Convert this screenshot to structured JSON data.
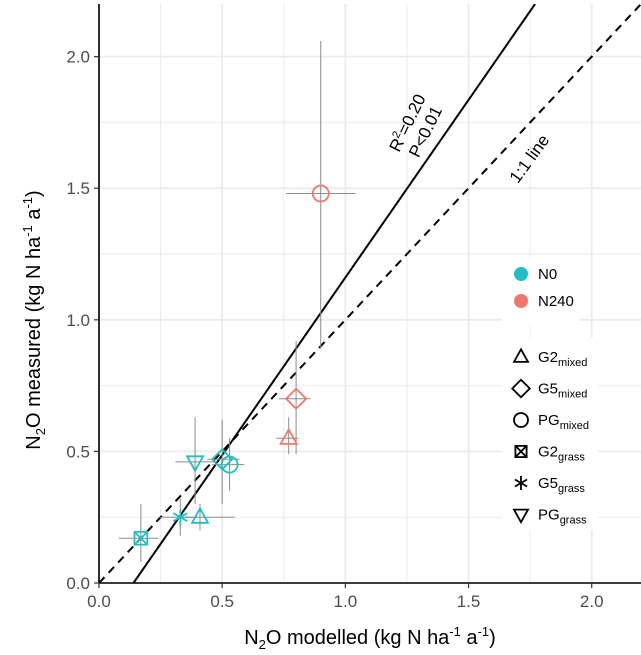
{
  "chart_data": {
    "type": "scatter",
    "xlabel": {
      "pre": "N",
      "sub": "2",
      "mid": "O modelled (kg N ha",
      "sup1": "-1",
      "mid2": " a",
      "sup2": "-1",
      "post": ")"
    },
    "ylabel": {
      "pre": "N",
      "sub": "2",
      "mid": "O measured (kg N ha",
      "sup1": "-1",
      "mid2": " a",
      "sup2": "-1",
      "post": ")"
    },
    "xlim": [
      0,
      2.2
    ],
    "ylim": [
      0,
      2.2
    ],
    "x_ticks": [
      "0.0",
      "0.5",
      "1.0",
      "1.5",
      "2.0"
    ],
    "y_ticks": [
      "0.0",
      "0.5",
      "1.0",
      "1.5",
      "2.0"
    ],
    "grid": true,
    "regression": {
      "r2_prefix": "R",
      "r2_sup": "2",
      "r2_value": "=0.20",
      "p_text": "P<0.01",
      "points": [
        [
          0.14,
          0
        ],
        [
          1.77,
          2.2
        ]
      ]
    },
    "identity_line": {
      "label": "1:1 line",
      "points": [
        [
          0,
          0
        ],
        [
          2.2,
          2.2
        ]
      ]
    },
    "colors": {
      "N0": "#1fbfc4",
      "N240": "#f0776b",
      "error": "#8c8c8c",
      "grid": "#ebebeb"
    },
    "color_legend": [
      {
        "key": "N0",
        "label": "N0"
      },
      {
        "key": "N240",
        "label": "N240"
      }
    ],
    "shape_legend": [
      {
        "shape": "triangle-up",
        "base": "G2",
        "sub": "mixed"
      },
      {
        "shape": "diamond",
        "base": "G5",
        "sub": "mixed"
      },
      {
        "shape": "circle",
        "base": "PG",
        "sub": "mixed"
      },
      {
        "shape": "square-x",
        "base": "G2",
        "sub": "grass"
      },
      {
        "shape": "asterisk",
        "base": "G5",
        "sub": "grass"
      },
      {
        "shape": "triangle-down",
        "base": "PG",
        "sub": "grass"
      }
    ],
    "points": [
      {
        "treatment": "G2_grass",
        "shape": "square-x",
        "group": "N0",
        "x": 0.17,
        "y": 0.17,
        "xerr": [
          0.08,
          0.24
        ],
        "yerr": [
          0.08,
          0.3
        ]
      },
      {
        "treatment": "G5_grass",
        "shape": "asterisk",
        "group": "N0",
        "x": 0.33,
        "y": 0.25,
        "xerr": [
          0.24,
          0.4
        ],
        "yerr": [
          0.18,
          0.32
        ]
      },
      {
        "treatment": "G2_mixed",
        "shape": "triangle-up",
        "group": "N0",
        "x": 0.41,
        "y": 0.25,
        "xerr": [
          0.33,
          0.55
        ],
        "yerr": [
          0.2,
          0.3
        ]
      },
      {
        "treatment": "PG_grass",
        "shape": "triangle-down",
        "group": "N0",
        "x": 0.39,
        "y": 0.46,
        "xerr": [
          0.31,
          0.47
        ],
        "yerr": [
          0.3,
          0.63
        ]
      },
      {
        "treatment": "G5_mixed",
        "shape": "diamond",
        "group": "N0",
        "x": 0.5,
        "y": 0.47,
        "xerr": [
          0.44,
          0.57
        ],
        "yerr": [
          0.3,
          0.62
        ]
      },
      {
        "treatment": "PG_mixed",
        "shape": "circle",
        "group": "N0",
        "x": 0.53,
        "y": 0.45,
        "xerr": [
          0.46,
          0.59
        ],
        "yerr": [
          0.35,
          0.55
        ]
      },
      {
        "treatment": "G2_mixed",
        "shape": "triangle-up",
        "group": "N240",
        "x": 0.77,
        "y": 0.55,
        "xerr": [
          0.72,
          0.81
        ],
        "yerr": [
          0.49,
          0.63
        ]
      },
      {
        "treatment": "G5_mixed",
        "shape": "diamond",
        "group": "N240",
        "x": 0.8,
        "y": 0.7,
        "xerr": [
          0.73,
          0.86
        ],
        "yerr": [
          0.49,
          0.92
        ]
      },
      {
        "treatment": "PG_mixed",
        "shape": "circle",
        "group": "N240",
        "x": 0.9,
        "y": 1.48,
        "xerr": [
          0.76,
          1.04
        ],
        "yerr": [
          0.89,
          2.06
        ]
      }
    ]
  }
}
